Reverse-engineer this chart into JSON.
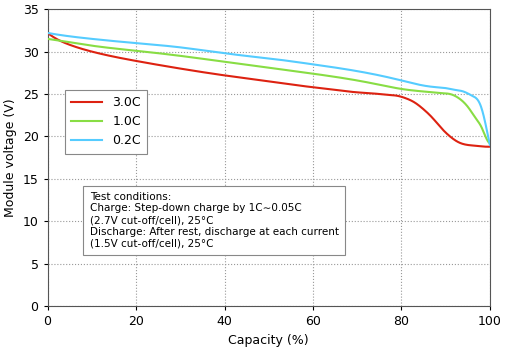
{
  "title": "",
  "xlabel": "Capacity (%)",
  "ylabel": "Module voltage (V)",
  "xlim": [
    0,
    100
  ],
  "ylim": [
    0,
    35
  ],
  "yticks": [
    0,
    5,
    10,
    15,
    20,
    25,
    30,
    35
  ],
  "xticks": [
    0,
    20,
    40,
    60,
    80,
    100
  ],
  "colors": {
    "0.2C": "#55ccff",
    "1.0C": "#88dd44",
    "3.0C": "#dd2211"
  },
  "legend_labels": [
    "0.2C",
    "1.0C",
    "3.0C"
  ],
  "annotation": "Test conditions:\nCharge: Step-down charge by 1C∼0.05C\n(2.7V cut-off/cell), 25°C\nDischarge: After rest, discharge at each current\n(1.5V cut-off/cell), 25°C",
  "background_color": "#ffffff",
  "grid_color": "#999999"
}
